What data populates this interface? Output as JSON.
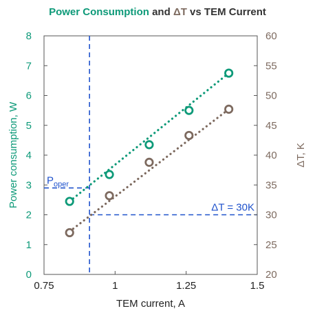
{
  "chart_data": {
    "type": "scatter",
    "title": "Power Consumption and ΔT vs TEM Current",
    "title_parts": [
      {
        "text": "Power Consumption",
        "role": "left"
      },
      {
        "text": " and ",
        "role": "plain"
      },
      {
        "text": "ΔT",
        "role": "right"
      },
      {
        "text": " vs TEM Current",
        "role": "plain"
      }
    ],
    "xlabel": "TEM current, A",
    "ylabel_left": "Power consumption, W",
    "ylabel_right": "ΔT, K",
    "xlim": [
      0.75,
      1.5
    ],
    "ylim_left": [
      0,
      8
    ],
    "ylim_right": [
      20,
      60
    ],
    "x_ticks": [
      "0.75",
      "1",
      "1.25",
      "1.5"
    ],
    "y_left_ticks": [
      "0",
      "1",
      "2",
      "3",
      "4",
      "5",
      "6",
      "7",
      "8"
    ],
    "y_right_ticks": [
      "20",
      "25",
      "30",
      "35",
      "40",
      "45",
      "50",
      "55",
      "60"
    ],
    "grid": false,
    "series": [
      {
        "axis": "left",
        "color": "#0e9a79",
        "x": [
          0.84,
          0.98,
          1.12,
          1.26,
          1.4
        ],
        "y": [
          2.45,
          3.35,
          4.35,
          5.5,
          6.75
        ],
        "trend": {
          "x": [
            0.84,
            1.4
          ],
          "y": [
            2.45,
            6.75
          ]
        }
      },
      {
        "axis": "right",
        "color": "#7d6a5f",
        "x": [
          0.84,
          0.98,
          1.12,
          1.26,
          1.4
        ],
        "y": [
          27.0,
          33.2,
          38.8,
          43.3,
          47.7
        ],
        "trend": {
          "x": [
            0.84,
            1.4
          ],
          "y": [
            27.2,
            47.7
          ]
        }
      }
    ],
    "reference_lines": {
      "color": "#1f52cc",
      "x_current": 0.91,
      "p_oper": 2.9,
      "delta_t": 30
    },
    "annotations": [
      {
        "text": "P",
        "sub": "oper",
        "color": "#1f52cc"
      },
      {
        "text": "ΔT = 30K",
        "color": "#1f52cc"
      }
    ],
    "colors": {
      "left_axis": "#0e9a79",
      "right_axis": "#7d6a5f",
      "title_plain": "#333333",
      "reference": "#1f52cc"
    }
  }
}
